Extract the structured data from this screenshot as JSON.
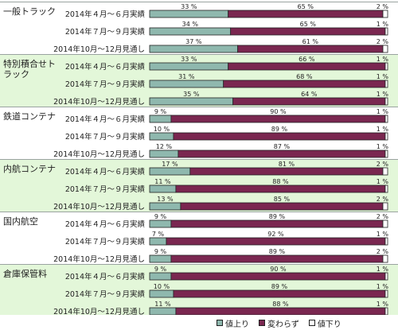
{
  "chart_data": {
    "type": "bar",
    "stacked": "percent-horizontal",
    "series": [
      {
        "name": "値上り",
        "color": "#8fb8ae"
      },
      {
        "name": "変わらず",
        "color": "#7a2750"
      },
      {
        "name": "値下り",
        "color": "#ffffff"
      }
    ],
    "unit": "%",
    "groups": [
      {
        "label": "一般トラック",
        "rows": [
          {
            "period": "2014年４月～６月実績",
            "values": [
              33,
              65,
              2
            ]
          },
          {
            "period": "2014年７月～９月実績",
            "values": [
              34,
              65,
              1
            ]
          },
          {
            "period": "2014年10月～12月見通し",
            "values": [
              37,
              61,
              2
            ]
          }
        ]
      },
      {
        "label": "特別積合せトラック",
        "rows": [
          {
            "period": "2014年４月～６月実績",
            "values": [
              33,
              66,
              1
            ]
          },
          {
            "period": "2014年７月～９月実績",
            "values": [
              31,
              68,
              1
            ]
          },
          {
            "period": "2014年10月～12月見通し",
            "values": [
              35,
              64,
              1
            ]
          }
        ]
      },
      {
        "label": "鉄道コンテナ",
        "rows": [
          {
            "period": "2014年４月～６月実績",
            "values": [
              9,
              90,
              1
            ]
          },
          {
            "period": "2014年７月～９月実績",
            "values": [
              10,
              89,
              1
            ]
          },
          {
            "period": "2014年10月～12月見通し",
            "values": [
              12,
              87,
              1
            ]
          }
        ]
      },
      {
        "label": "内航コンテナ",
        "rows": [
          {
            "period": "2014年４月～６月実績",
            "values": [
              17,
              81,
              2
            ]
          },
          {
            "period": "2014年７月～９月実績",
            "values": [
              11,
              88,
              1
            ]
          },
          {
            "period": "2014年10月～12月見通し",
            "values": [
              13,
              85,
              2
            ]
          }
        ]
      },
      {
        "label": "国内航空",
        "rows": [
          {
            "period": "2014年４月～６月実績",
            "values": [
              9,
              89,
              2
            ]
          },
          {
            "period": "2014年７月～９月実績",
            "values": [
              7,
              92,
              1
            ]
          },
          {
            "period": "2014年10月～12月見通し",
            "values": [
              9,
              89,
              2
            ]
          }
        ]
      },
      {
        "label": "倉庫保管料",
        "rows": [
          {
            "period": "2014年４月～６月実績",
            "values": [
              9,
              90,
              1
            ]
          },
          {
            "period": "2014年７月～９月実績",
            "values": [
              10,
              89,
              1
            ]
          },
          {
            "period": "2014年10月～12月見通し",
            "values": [
              11,
              88,
              1
            ]
          }
        ]
      }
    ],
    "xlim": [
      0,
      100
    ],
    "legend_position": "bottom-right",
    "group_band_colors": [
      "#ffffff",
      "#e3f7d9"
    ]
  }
}
